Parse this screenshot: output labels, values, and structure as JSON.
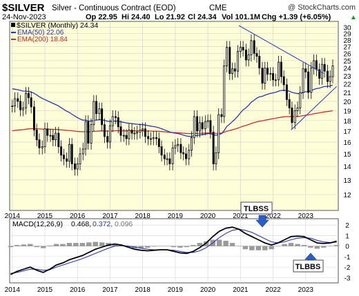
{
  "header": {
    "symbol": "$SILVER",
    "description": "Silver - Continuous Contract (EOD)",
    "exchange": "CME",
    "copyright": "@ StockCharts.com",
    "date": "24-Nov-2023",
    "op": "Op 22.95",
    "hi": "Hi 24.40",
    "lo": "Lo 21.92",
    "cl": "Cl 24.34",
    "vol": "Vol 101.1M",
    "chg": "Chg +1.39 (+6.05%)",
    "chg_arrow": "▲"
  },
  "legend": {
    "price": "$SILVER (Monthly) 24.34",
    "ema50": "EMA(50) 22.06",
    "ema200": "EMA(200) 18.84"
  },
  "macd_label": {
    "name": "MACD(12,26,9)",
    "v1": "0.468,",
    "v2": "0.372,",
    "v3": "0.096"
  },
  "annotations": {
    "top": "TLBSS",
    "bottom": "TLBBS"
  },
  "colors": {
    "price_bg": "#fdfdd8",
    "candle": "#000000",
    "ema50": "#2b35a8",
    "ema200": "#c0302a",
    "trendline": "#3348b8",
    "macd": "#000000",
    "signal": "#2b35a8",
    "histogram": "#9a9a9a",
    "arrow": "#2a5fc7"
  },
  "chart_data": [
    {
      "type": "candlestick",
      "title": "Silver - Continuous Contract (EOD) CME",
      "interval": "Monthly",
      "x_labels": [
        "2014",
        "2015",
        "2016",
        "2017",
        "2018",
        "2019",
        "2020",
        "2021",
        "2022",
        "2023"
      ],
      "y_ticks": [
        12,
        13,
        14,
        15,
        16,
        17,
        18,
        19,
        20,
        21,
        22,
        23,
        24,
        25,
        26,
        27,
        28,
        29,
        30
      ],
      "y_scale": "log",
      "ylim": [
        11,
        31
      ],
      "grid": true,
      "last": 24.34,
      "series": [
        {
          "name": "$SILVER (Monthly) 24.34",
          "x": [
            2014.0,
            2014.08,
            2014.17,
            2014.25,
            2014.33,
            2014.42,
            2014.5,
            2014.58,
            2014.67,
            2014.75,
            2014.83,
            2014.92,
            2015.0,
            2015.08,
            2015.17,
            2015.25,
            2015.33,
            2015.42,
            2015.5,
            2015.58,
            2015.67,
            2015.75,
            2015.83,
            2015.92,
            2016.0,
            2016.08,
            2016.17,
            2016.25,
            2016.33,
            2016.42,
            2016.5,
            2016.58,
            2016.67,
            2016.75,
            2016.83,
            2016.92,
            2017.0,
            2017.08,
            2017.17,
            2017.25,
            2017.33,
            2017.42,
            2017.5,
            2017.58,
            2017.67,
            2017.75,
            2017.83,
            2017.92,
            2018.0,
            2018.08,
            2018.17,
            2018.25,
            2018.33,
            2018.42,
            2018.5,
            2018.58,
            2018.67,
            2018.75,
            2018.83,
            2018.92,
            2019.0,
            2019.08,
            2019.17,
            2019.25,
            2019.33,
            2019.42,
            2019.5,
            2019.58,
            2019.67,
            2019.75,
            2019.83,
            2019.92,
            2020.0,
            2020.08,
            2020.17,
            2020.25,
            2020.33,
            2020.42,
            2020.5,
            2020.58,
            2020.67,
            2020.75,
            2020.83,
            2020.92,
            2021.0,
            2021.08,
            2021.17,
            2021.25,
            2021.33,
            2021.42,
            2021.5,
            2021.58,
            2021.67,
            2021.75,
            2021.83,
            2021.92,
            2022.0,
            2022.08,
            2022.17,
            2022.25,
            2022.33,
            2022.42,
            2022.5,
            2022.58,
            2022.67,
            2022.75,
            2022.83,
            2022.92,
            2023.0,
            2023.08,
            2023.17,
            2023.25,
            2023.33,
            2023.42,
            2023.5,
            2023.58,
            2023.67,
            2023.75,
            2023.83
          ],
          "close": [
            19.5,
            20.3,
            20.0,
            19.1,
            19.3,
            20.9,
            20.4,
            19.4,
            17.1,
            16.2,
            15.5,
            15.6,
            17.2,
            16.6,
            16.6,
            16.2,
            16.8,
            15.6,
            14.9,
            14.6,
            14.4,
            15.8,
            14.2,
            13.8,
            14.2,
            15.0,
            15.4,
            17.9,
            15.9,
            17.6,
            20.0,
            18.7,
            19.2,
            17.6,
            16.5,
            16.0,
            17.5,
            18.4,
            18.3,
            17.4,
            16.6,
            16.6,
            16.3,
            17.1,
            16.8,
            16.8,
            16.9,
            17.1,
            17.2,
            16.5,
            16.3,
            16.3,
            16.4,
            16.3,
            15.6,
            14.9,
            14.6,
            14.6,
            14.2,
            15.5,
            15.7,
            15.8,
            15.1,
            15.0,
            14.6,
            15.3,
            16.4,
            18.4,
            17.0,
            17.8,
            17.2,
            17.9,
            18.0,
            16.9,
            14.2,
            15.1,
            18.6,
            18.4,
            24.3,
            26.9,
            23.3,
            23.9,
            23.6,
            26.3,
            26.9,
            26.5,
            25.1,
            25.8,
            27.9,
            26.0,
            25.6,
            24.0,
            22.1,
            24.0,
            23.2,
            23.3,
            22.5,
            22.5,
            24.8,
            22.9,
            21.9,
            20.2,
            19.3,
            17.8,
            19.0,
            19.3,
            21.0,
            23.9,
            23.5,
            21.0,
            24.0,
            25.0,
            23.8,
            22.7,
            24.5,
            23.6,
            22.3,
            22.9,
            24.3
          ]
        },
        {
          "name": "EMA(50) 22.06"
        },
        {
          "name": "EMA(200) 18.84"
        }
      ],
      "annotations": [
        "TLBSS",
        "TLBBS"
      ]
    },
    {
      "type": "line",
      "title": "MACD(12,26,9) 0.468, 0.372, 0.096",
      "x_labels": [
        "2014",
        "2015",
        "2016",
        "2017",
        "2018",
        "2019",
        "2020",
        "2021",
        "2022",
        "2023"
      ],
      "y_ticks": [
        -3,
        -2,
        -1,
        0,
        1,
        2
      ],
      "ylim": [
        -3.5,
        2.6
      ],
      "grid": true,
      "macd": [
        -2.7,
        -2.4,
        -2.2,
        -2.0,
        -2.3,
        -2.5,
        -2.2,
        -1.8,
        -1.6,
        -1.3,
        -1.1,
        -0.9,
        -0.6,
        -0.3,
        -0.1,
        0.1,
        0.2,
        0.1,
        -0.1,
        -0.3,
        -0.4,
        -0.45,
        -0.4,
        -0.35,
        -0.35,
        -0.5,
        -0.65,
        -0.7,
        -0.5,
        -0.15,
        0.3,
        0.9,
        1.4,
        1.7,
        1.8,
        1.6,
        1.2,
        0.9,
        0.6,
        0.3,
        0.1,
        0.3,
        0.6,
        0.9,
        0.95,
        0.9,
        0.6,
        0.3,
        0.25,
        0.3,
        0.47
      ],
      "signal": [
        -2.6,
        -2.5,
        -2.35,
        -2.2,
        -2.2,
        -2.3,
        -2.25,
        -2.0,
        -1.8,
        -1.6,
        -1.4,
        -1.2,
        -0.95,
        -0.7,
        -0.45,
        -0.2,
        0.0,
        0.05,
        0.0,
        -0.1,
        -0.2,
        -0.3,
        -0.35,
        -0.35,
        -0.35,
        -0.4,
        -0.5,
        -0.6,
        -0.6,
        -0.45,
        -0.15,
        0.3,
        0.8,
        1.2,
        1.5,
        1.6,
        1.5,
        1.3,
        1.0,
        0.7,
        0.4,
        0.3,
        0.4,
        0.6,
        0.75,
        0.8,
        0.75,
        0.55,
        0.4,
        0.33,
        0.37
      ],
      "histogram": [
        -0.1,
        0.1,
        0.15,
        0.2,
        -0.1,
        -0.2,
        0.05,
        0.2,
        0.2,
        0.3,
        0.3,
        0.3,
        0.35,
        0.4,
        0.35,
        0.3,
        0.2,
        0.05,
        -0.1,
        -0.2,
        -0.2,
        -0.15,
        -0.05,
        0.0,
        0.0,
        -0.1,
        -0.15,
        -0.1,
        0.1,
        0.3,
        0.45,
        0.6,
        0.6,
        0.5,
        0.3,
        0.0,
        -0.3,
        -0.4,
        -0.4,
        -0.4,
        -0.3,
        0.0,
        0.2,
        0.3,
        0.2,
        0.1,
        -0.15,
        -0.25,
        -0.15,
        -0.03,
        0.1
      ]
    }
  ]
}
